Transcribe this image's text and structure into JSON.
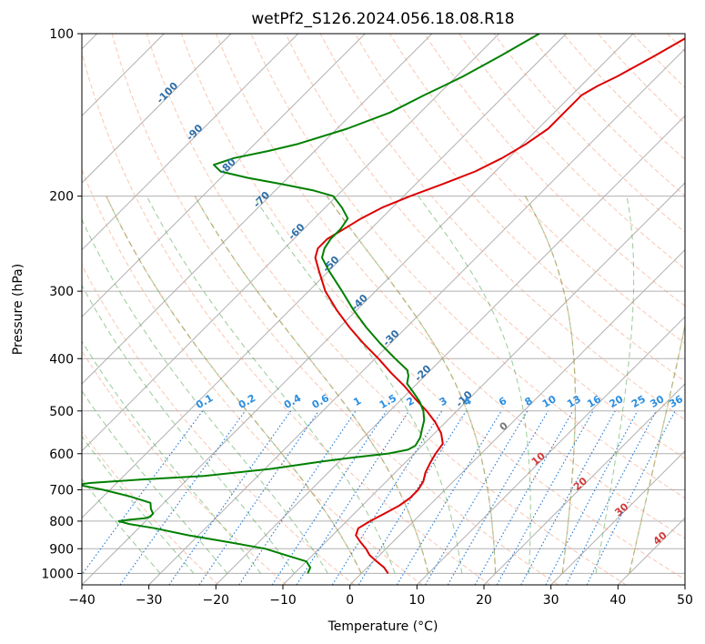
{
  "chart_data": {
    "type": "skew-t",
    "title": "wetPf2_S126.2024.056.18.08.R18",
    "xlabel": "Temperature (°C)",
    "ylabel": "Pressure (hPa)",
    "xlim": [
      -40,
      50
    ],
    "ylim_pressure_hPa": [
      1050,
      100
    ],
    "y_scale": "log",
    "grid": true,
    "x_ticks": [
      "−40",
      "−30",
      "−20",
      "−10",
      "0",
      "10",
      "20",
      "30",
      "40",
      "50"
    ],
    "x_tick_values": [
      -40,
      -30,
      -20,
      -10,
      0,
      10,
      20,
      30,
      40,
      50
    ],
    "y_ticks": [
      "1000",
      "900",
      "800",
      "700",
      "600",
      "500",
      "400",
      "300",
      "200",
      "100"
    ],
    "y_tick_values": [
      1000,
      900,
      800,
      700,
      600,
      500,
      400,
      300,
      200,
      100
    ],
    "isotherm_labels": [
      "-100",
      "-90",
      "-80",
      "-70",
      "-60",
      "-50",
      "-40",
      "-30",
      "-20",
      "-10"
    ],
    "isotherm_label_values": [
      -100,
      -90,
      -80,
      -70,
      -60,
      -50,
      -40,
      -30,
      -20,
      -10
    ],
    "isotherm_label_pressures": [
      130,
      154,
      178,
      205,
      235,
      270,
      318,
      370,
      430,
      480
    ],
    "mixing_ratio_labels": [
      "0.1",
      "0.2",
      "0.4",
      "0.6",
      "1",
      "1.5",
      "2",
      "3",
      "4",
      "6",
      "8",
      "10",
      "13",
      "16",
      "20",
      "25",
      "30",
      "36"
    ],
    "mixing_ratio_values": [
      0.1,
      0.2,
      0.4,
      0.6,
      1,
      1.5,
      2,
      3,
      4,
      6,
      8,
      10,
      13,
      16,
      20,
      25,
      30,
      36
    ],
    "wet_bulb_labels": [
      "0",
      "10",
      "20",
      "30",
      "40"
    ],
    "wet_bulb_values": [
      0,
      10,
      20,
      30,
      40
    ],
    "series": [
      {
        "color": "#dd0000",
        "pressure_hPa": [
          1000,
          975,
          950,
          925,
          900,
          875,
          850,
          825,
          800,
          775,
          750,
          725,
          700,
          675,
          650,
          625,
          600,
          575,
          550,
          525,
          500,
          475,
          450,
          425,
          400,
          375,
          350,
          325,
          300,
          275,
          260,
          250,
          240,
          230,
          220,
          210,
          200,
          190,
          180,
          170,
          160,
          150,
          140,
          130,
          125,
          120,
          110,
          100
        ],
        "temperature_C": [
          4.0,
          2.5,
          0.5,
          -1.5,
          -3.0,
          -4.8,
          -6.5,
          -7.2,
          -6.5,
          -5.5,
          -4.5,
          -4.0,
          -4.0,
          -4.5,
          -5.5,
          -6.2,
          -6.8,
          -7.2,
          -9.0,
          -11.5,
          -14.5,
          -18.0,
          -21.5,
          -25.5,
          -29.5,
          -34.0,
          -38.5,
          -43.0,
          -47.5,
          -51.5,
          -54.0,
          -55.0,
          -55.0,
          -54.0,
          -53.0,
          -51.5,
          -49.0,
          -46.0,
          -43.0,
          -41.0,
          -39.5,
          -38.5,
          -38.5,
          -38.5,
          -37.5,
          -36.0,
          -33.5,
          -31.0
        ]
      },
      {
        "color": "#008000",
        "pressure_hPa": [
          1000,
          975,
          950,
          925,
          900,
          875,
          850,
          825,
          810,
          800,
          795,
          790,
          785,
          775,
          760,
          740,
          720,
          700,
          690,
          685,
          680,
          670,
          660,
          640,
          620,
          610,
          600,
          590,
          580,
          560,
          540,
          520,
          500,
          480,
          460,
          445,
          430,
          420,
          400,
          375,
          350,
          325,
          300,
          275,
          260,
          250,
          240,
          230,
          220,
          210,
          200,
          195,
          190,
          185,
          180,
          175,
          170,
          165,
          160,
          150,
          140,
          130,
          125,
          120,
          110,
          100
        ],
        "temperature_C": [
          -8.0,
          -8.5,
          -10.0,
          -14.0,
          -18.0,
          -24.5,
          -31.5,
          -37.5,
          -42.0,
          -44.0,
          -42.5,
          -40.5,
          -40.0,
          -40.0,
          -41.0,
          -42.0,
          -46.0,
          -51.0,
          -54.0,
          -55.5,
          -54.0,
          -47.0,
          -38.0,
          -29.0,
          -22.5,
          -18.5,
          -14.0,
          -11.5,
          -11.0,
          -11.5,
          -12.5,
          -13.5,
          -15.0,
          -17.0,
          -19.5,
          -21.5,
          -22.5,
          -23.5,
          -27.0,
          -31.5,
          -36.0,
          -40.5,
          -45.0,
          -50.0,
          -53.0,
          -54.0,
          -54.5,
          -54.5,
          -55.0,
          -57.5,
          -60.5,
          -64.5,
          -70.0,
          -76.0,
          -81.0,
          -83.0,
          -81.0,
          -77.0,
          -73.5,
          -68.5,
          -64.5,
          -62.0,
          -60.5,
          -59.0,
          -56.5,
          -54.0
        ]
      }
    ]
  }
}
